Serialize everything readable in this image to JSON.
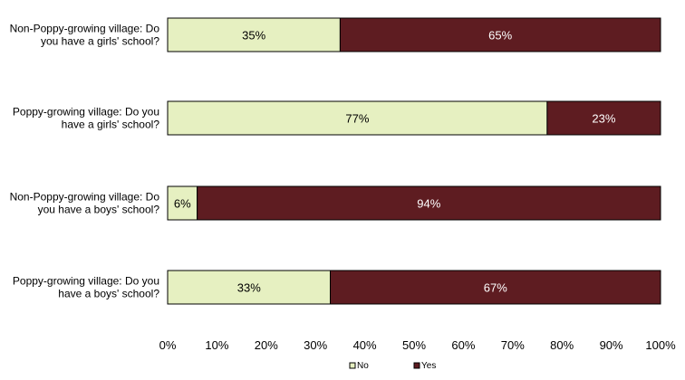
{
  "chart_data": {
    "type": "bar",
    "orientation": "horizontal",
    "stacked": true,
    "categories": [
      [
        "Non-Poppy-growing village: Do",
        "you have a girls' school?"
      ],
      [
        "Poppy-growing village: Do you",
        "have a girls' school?"
      ],
      [
        "Non-Poppy-growing village: Do",
        "you have a boys' school?"
      ],
      [
        "Poppy-growing village: Do you",
        "have a boys' school?"
      ]
    ],
    "series": [
      {
        "name": "No",
        "color": "#e6f0c1",
        "label_color": "#000000",
        "values": [
          35,
          77,
          6,
          33
        ],
        "labels": [
          "35%",
          "77%",
          "6%",
          "33%"
        ]
      },
      {
        "name": "Yes",
        "color": "#5e1c21",
        "label_color": "#ffffff",
        "values": [
          65,
          23,
          94,
          67
        ],
        "labels": [
          "65%",
          "23%",
          "94%",
          "67%"
        ]
      }
    ],
    "xlim": [
      0,
      100
    ],
    "xticks": [
      0,
      10,
      20,
      30,
      40,
      50,
      60,
      70,
      80,
      90,
      100
    ],
    "xtick_labels": [
      "0%",
      "10%",
      "20%",
      "30%",
      "40%",
      "50%",
      "60%",
      "70%",
      "80%",
      "90%",
      "100%"
    ],
    "grid": false,
    "legend_position": "bottom"
  }
}
